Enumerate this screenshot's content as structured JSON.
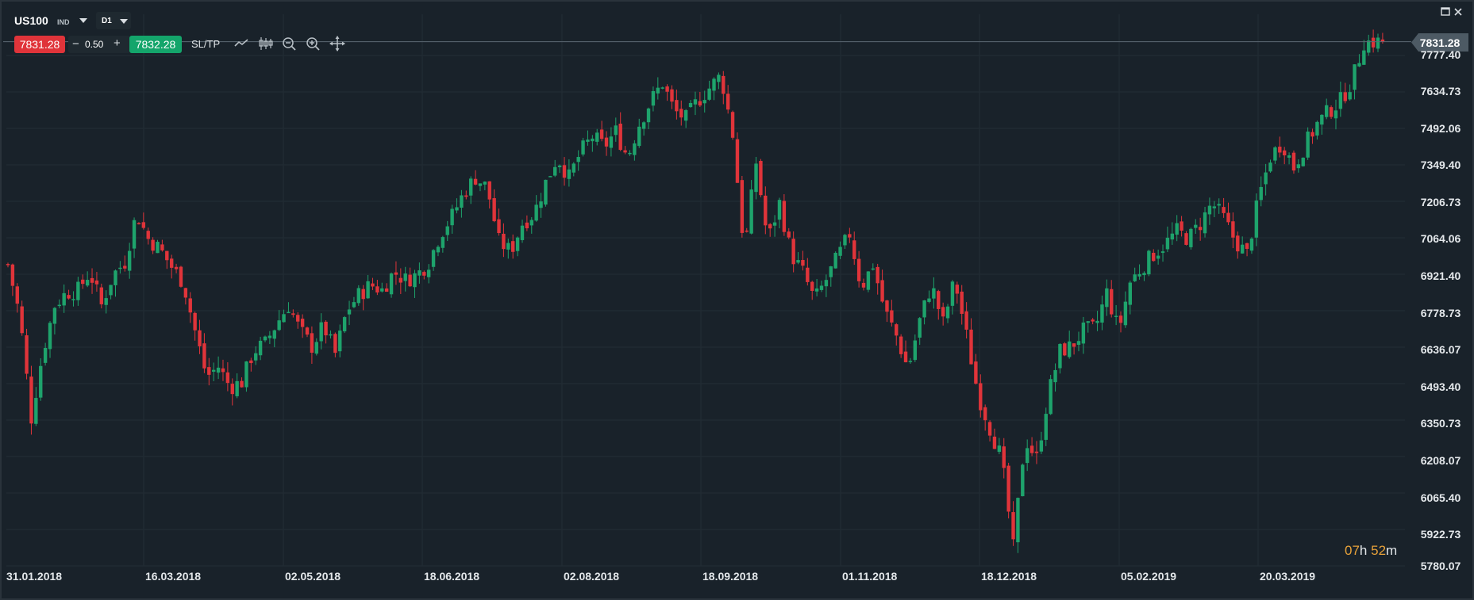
{
  "header": {
    "symbol": "US100",
    "asset_class": "IND",
    "timeframe": "D1"
  },
  "trade_panel": {
    "sell_price": "7831.28",
    "minus": "−",
    "quantity": "0.50",
    "plus": "+",
    "buy_price": "7832.28",
    "sltp_label": "SL/TP"
  },
  "toolbar_icons": [
    "line-chart-icon",
    "candlestick-icon",
    "zoom-out-icon",
    "zoom-in-icon",
    "crosshair-move-icon"
  ],
  "window_icons": [
    "maximize-icon",
    "close-icon"
  ],
  "countdown": {
    "hours": "07",
    "h": "h",
    "minutes": "52",
    "m": "m"
  },
  "colors": {
    "up": "#1ea36c",
    "down": "#e0343a",
    "background": "#19222a",
    "accent_countdown": "#e8a23a"
  },
  "chart_data": {
    "type": "candlestick",
    "symbol": "US100",
    "timeframe": "D1",
    "last_price": "7831.28",
    "y_ticks": [
      "7777.40",
      "7634.73",
      "7492.06",
      "7349.40",
      "7206.73",
      "7064.06",
      "6921.40",
      "6778.73",
      "6636.07",
      "6493.40",
      "6350.73",
      "6208.07",
      "6065.40",
      "5922.73",
      "5780.07"
    ],
    "x_ticks": [
      "31.01.2018",
      "16.03.2018",
      "02.05.2018",
      "18.06.2018",
      "02.08.2018",
      "18.09.2018",
      "01.11.2018",
      "18.12.2018",
      "05.02.2019",
      "20.03.2019"
    ],
    "ylim": [
      5780.07,
      7777.4
    ],
    "path_closes": [
      6960,
      6760,
      6360,
      6620,
      6800,
      6850,
      6860,
      6930,
      6800,
      6920,
      6970,
      7160,
      7060,
      7020,
      6950,
      6890,
      6700,
      6520,
      6560,
      6480,
      6500,
      6620,
      6650,
      6730,
      6800,
      6700,
      6640,
      6720,
      6610,
      6780,
      6840,
      6880,
      6860,
      6930,
      6900,
      6920,
      6970,
      7080,
      7150,
      7240,
      7300,
      7260,
      7050,
      7010,
      7120,
      7160,
      7280,
      7380,
      7300,
      7400,
      7460,
      7420,
      7480,
      7380,
      7510,
      7600,
      7670,
      7560,
      7530,
      7600,
      7650,
      7700,
      7470,
      7010,
      7360,
      7050,
      7200,
      7000,
      6930,
      6820,
      6900,
      6990,
      7080,
      6870,
      6960,
      6780,
      6680,
      6550,
      6740,
      6880,
      6730,
      6900,
      6680,
      6450,
      6320,
      6200,
      5850,
      6280,
      6200,
      6450,
      6620,
      6640,
      6700,
      6710,
      6850,
      6700,
      6890,
      6950,
      7000,
      7040,
      7090,
      7060,
      7120,
      7200,
      7140,
      7050,
      7000,
      7220,
      7380,
      7440,
      7340,
      7430,
      7510,
      7560,
      7600,
      7680,
      7830,
      7831
    ],
    "last_candle": {
      "open": 7840,
      "high": 7866,
      "low": 7824,
      "close": 7831.28
    }
  }
}
